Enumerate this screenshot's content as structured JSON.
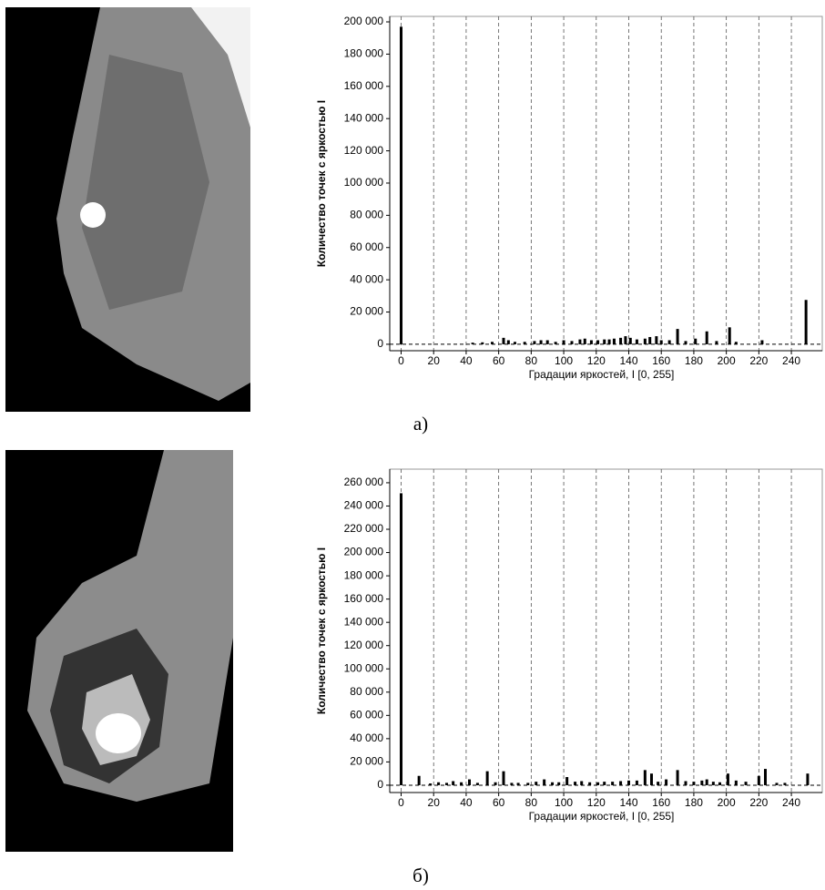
{
  "chart_data": [
    {
      "type": "bar",
      "caption": "а)",
      "xlabel": "Градации яркостей, I [0, 255]",
      "ylabel": "Количество точек с яркостью I",
      "color": "#000000",
      "grid": true,
      "xlim": [
        -7,
        259
      ],
      "ylim": [
        -4000,
        203400
      ],
      "xticks": [
        0,
        20,
        40,
        60,
        80,
        100,
        120,
        140,
        160,
        180,
        200,
        220,
        240
      ],
      "yticks": [
        0,
        {
          "value": 20000,
          "label": "20 000"
        },
        {
          "value": 40000,
          "label": "40 000"
        },
        {
          "value": 60000,
          "label": "60 000"
        },
        {
          "value": 80000,
          "label": "80 000"
        },
        {
          "value": 100000,
          "label": "100 000"
        },
        {
          "value": 120000,
          "label": "120 000"
        },
        {
          "value": 140000,
          "label": "140 000"
        },
        {
          "value": 160000,
          "label": "160 000"
        },
        {
          "value": 180000,
          "label": "180 000"
        },
        {
          "value": 200000,
          "label": "200 000"
        }
      ],
      "x": [
        0,
        44,
        50,
        56,
        63,
        66,
        70,
        76,
        82,
        86,
        90,
        95,
        100,
        105,
        110,
        113,
        117,
        121,
        125,
        128,
        131,
        135,
        138,
        141,
        145,
        150,
        153,
        157,
        160,
        165,
        170,
        175,
        181,
        188,
        194,
        202,
        206,
        222,
        249
      ],
      "values": [
        197000,
        1000,
        1200,
        1500,
        4000,
        2500,
        1500,
        1500,
        2000,
        2500,
        2500,
        1500,
        2500,
        2000,
        3000,
        3500,
        2500,
        2500,
        3000,
        3000,
        3500,
        4000,
        5000,
        4000,
        3000,
        3500,
        4500,
        5000,
        2500,
        2500,
        9500,
        2000,
        3500,
        8000,
        2000,
        10500,
        1500,
        2500,
        27500
      ]
    },
    {
      "type": "bar",
      "caption": "б)",
      "xlabel": "Градации яркостей, I [0, 255]",
      "ylabel": "Количество точек с яркостью I",
      "color": "#000000",
      "grid": true,
      "xlim": [
        -7,
        259
      ],
      "ylim": [
        -6300,
        271700
      ],
      "xticks": [
        0,
        20,
        40,
        60,
        80,
        100,
        120,
        140,
        160,
        180,
        200,
        220,
        240
      ],
      "yticks": [
        0,
        {
          "value": 20000,
          "label": "20 000"
        },
        {
          "value": 40000,
          "label": "40 000"
        },
        {
          "value": 60000,
          "label": "60 000"
        },
        {
          "value": 80000,
          "label": "80 000"
        },
        {
          "value": 100000,
          "label": "100 000"
        },
        {
          "value": 120000,
          "label": "120 000"
        },
        {
          "value": 140000,
          "label": "140 000"
        },
        {
          "value": 160000,
          "label": "160 000"
        },
        {
          "value": 180000,
          "label": "180 000"
        },
        {
          "value": 200000,
          "label": "200 000"
        },
        {
          "value": 220000,
          "label": "220 000"
        },
        {
          "value": 240000,
          "label": "240 000"
        },
        {
          "value": 260000,
          "label": "260 000"
        }
      ],
      "x": [
        0,
        11,
        18,
        23,
        28,
        32,
        37,
        42,
        47,
        53,
        58,
        63,
        68,
        72,
        78,
        83,
        88,
        93,
        97,
        102,
        107,
        111,
        116,
        121,
        125,
        130,
        135,
        140,
        145,
        150,
        154,
        158,
        163,
        170,
        175,
        180,
        185,
        188,
        192,
        196,
        201,
        206,
        212,
        220,
        224,
        231,
        236,
        250
      ],
      "values": [
        251000,
        8000,
        1500,
        2500,
        2000,
        3500,
        2500,
        5000,
        2000,
        12000,
        2500,
        12000,
        2000,
        2000,
        2000,
        3000,
        5000,
        2500,
        2500,
        7000,
        3000,
        3500,
        2500,
        2500,
        3000,
        3000,
        3500,
        4000,
        4000,
        13000,
        10000,
        3000,
        5000,
        13000,
        3500,
        3000,
        4000,
        5000,
        3000,
        2500,
        10000,
        4000,
        3000,
        8000,
        14000,
        2000,
        2000,
        10000
      ]
    }
  ]
}
